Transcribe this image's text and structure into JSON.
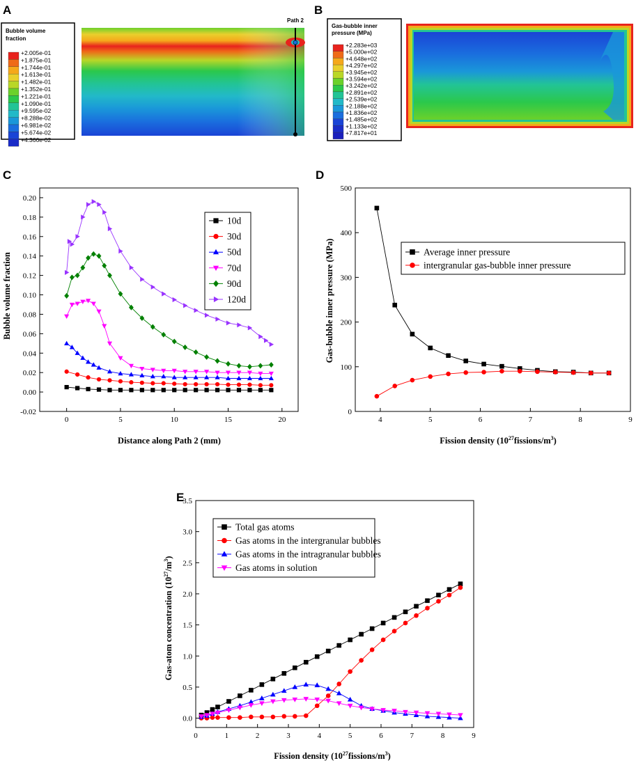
{
  "panels": {
    "A": {
      "letter": "A",
      "legend_title_line1": "Bubble volume",
      "legend_title_line2": "fraction",
      "legend_values": [
        "+2.005e-01",
        "+1.875e-01",
        "+1.744e-01",
        "+1.613e-01",
        "+1.482e-01",
        "+1.352e-01",
        "+1.221e-01",
        "+1.090e-01",
        "+9.595e-02",
        "+8.288e-02",
        "+6.981e-02",
        "+5.674e-02",
        "+4.366e-02"
      ],
      "path_label": "Path 2"
    },
    "B": {
      "letter": "B",
      "legend_title_line1": "Gas-bubble inner",
      "legend_title_line2": "pressure (MPa)",
      "legend_values": [
        "+2.283e+03",
        "+5.000e+02",
        "+4.648e+02",
        "+4.297e+02",
        "+3.945e+02",
        "+3.594e+02",
        "+3.242e+02",
        "+2.891e+02",
        "+2.539e+02",
        "+2.188e+02",
        "+1.836e+02",
        "+1.485e+02",
        "+1.133e+02",
        "+7.817e+01"
      ]
    },
    "C": {
      "letter": "C"
    },
    "D": {
      "letter": "D"
    },
    "E": {
      "letter": "E"
    }
  },
  "legend_colors": [
    "#e8231d",
    "#ef6a18",
    "#f5a81b",
    "#e9cf2c",
    "#b9d727",
    "#6bd12b",
    "#2bc84b",
    "#22c496",
    "#22b9c8",
    "#1a97d9",
    "#1a6ede",
    "#1a44d6",
    "#1a2cc8",
    "#1a1fbd"
  ],
  "chart_data": [
    {
      "id": "C",
      "type": "line",
      "xlabel": "Distance along Path 2 (mm)",
      "ylabel": "Bubble volume fraction",
      "xlim": [
        -2.5,
        21.5
      ],
      "ylim": [
        -0.02,
        0.21
      ],
      "xticks": [
        0,
        5,
        10,
        15,
        20
      ],
      "yticks": [
        -0.02,
        0.0,
        0.02,
        0.04,
        0.06,
        0.08,
        0.1,
        0.12,
        0.14,
        0.16,
        0.18,
        0.2
      ],
      "ytick_labels": [
        "-0.02",
        "0.00",
        "0.02",
        "0.04",
        "0.06",
        "0.08",
        "0.10",
        "0.12",
        "0.14",
        "0.16",
        "0.18",
        "0.20"
      ],
      "series": [
        {
          "name": "10d",
          "color": "#000000",
          "marker": "square",
          "x": [
            0,
            1,
            2,
            3,
            4,
            5,
            6,
            7,
            8,
            9,
            10,
            11,
            12,
            13,
            14,
            15,
            16,
            17,
            18,
            19
          ],
          "y": [
            0.005,
            0.004,
            0.003,
            0.0025,
            0.002,
            0.002,
            0.002,
            0.002,
            0.002,
            0.002,
            0.002,
            0.002,
            0.002,
            0.002,
            0.002,
            0.002,
            0.002,
            0.002,
            0.002,
            0.002
          ]
        },
        {
          "name": "30d",
          "color": "#ff0000",
          "marker": "circle",
          "x": [
            0,
            1,
            2,
            3,
            4,
            5,
            6,
            7,
            8,
            9,
            10,
            11,
            12,
            13,
            14,
            15,
            16,
            17,
            18,
            19
          ],
          "y": [
            0.021,
            0.018,
            0.015,
            0.013,
            0.012,
            0.011,
            0.01,
            0.0095,
            0.009,
            0.009,
            0.0085,
            0.008,
            0.008,
            0.008,
            0.008,
            0.0075,
            0.0075,
            0.0075,
            0.007,
            0.007
          ]
        },
        {
          "name": "50d",
          "color": "#0000ff",
          "marker": "triangle-up",
          "x": [
            0,
            0.5,
            1,
            1.5,
            2,
            2.5,
            3,
            4,
            5,
            6,
            7,
            8,
            9,
            10,
            11,
            12,
            13,
            14,
            15,
            16,
            17,
            18,
            19
          ],
          "y": [
            0.05,
            0.046,
            0.04,
            0.035,
            0.031,
            0.028,
            0.025,
            0.021,
            0.019,
            0.018,
            0.017,
            0.016,
            0.016,
            0.015,
            0.015,
            0.015,
            0.015,
            0.015,
            0.014,
            0.014,
            0.014,
            0.014,
            0.014
          ]
        },
        {
          "name": "70d",
          "color": "#ff00ff",
          "marker": "triangle-down",
          "x": [
            0,
            0.5,
            1,
            1.5,
            2,
            2.5,
            3,
            3.5,
            4,
            5,
            6,
            7,
            8,
            9,
            10,
            11,
            12,
            13,
            14,
            15,
            16,
            17,
            18,
            19
          ],
          "y": [
            0.078,
            0.09,
            0.091,
            0.093,
            0.094,
            0.091,
            0.083,
            0.068,
            0.05,
            0.035,
            0.027,
            0.024,
            0.023,
            0.022,
            0.022,
            0.021,
            0.021,
            0.021,
            0.02,
            0.02,
            0.02,
            0.02,
            0.019,
            0.019
          ]
        },
        {
          "name": "90d",
          "color": "#008000",
          "marker": "diamond",
          "x": [
            0,
            0.5,
            1,
            1.5,
            2,
            2.5,
            3,
            3.5,
            4,
            5,
            6,
            7,
            8,
            9,
            10,
            11,
            12,
            13,
            14,
            15,
            16,
            17,
            18,
            19
          ],
          "y": [
            0.099,
            0.118,
            0.12,
            0.128,
            0.138,
            0.142,
            0.14,
            0.13,
            0.12,
            0.101,
            0.087,
            0.076,
            0.067,
            0.059,
            0.052,
            0.046,
            0.041,
            0.036,
            0.032,
            0.029,
            0.027,
            0.026,
            0.027,
            0.028
          ]
        },
        {
          "name": "120d",
          "color": "#9933ff",
          "marker": "triangle-right",
          "x": [
            0,
            0.25,
            0.5,
            1,
            1.5,
            2,
            2.5,
            3,
            3.5,
            4,
            5,
            6,
            7,
            8,
            9,
            10,
            11,
            12,
            13,
            14,
            15,
            16,
            17,
            18,
            18.5,
            19
          ],
          "y": [
            0.123,
            0.155,
            0.152,
            0.16,
            0.18,
            0.193,
            0.196,
            0.193,
            0.185,
            0.168,
            0.145,
            0.128,
            0.116,
            0.108,
            0.101,
            0.095,
            0.089,
            0.084,
            0.079,
            0.075,
            0.071,
            0.069,
            0.066,
            0.057,
            0.053,
            0.049
          ]
        }
      ]
    },
    {
      "id": "D",
      "type": "line",
      "xlabel_pre": "Fission density (10",
      "xlabel_sup": "27",
      "xlabel_post": "fissions/m",
      "xlabel_sup2": "3",
      "xlabel_end": ")",
      "ylabel": "Gas-bubble inner pressure (MPa)",
      "xlim": [
        3.5,
        9
      ],
      "ylim": [
        0,
        500
      ],
      "xticks": [
        4,
        5,
        6,
        7,
        8,
        9
      ],
      "yticks": [
        0,
        100,
        200,
        300,
        400,
        500
      ],
      "series": [
        {
          "name": "Average inner pressure",
          "color": "#000000",
          "marker": "square",
          "x": [
            3.93,
            4.29,
            4.64,
            5.0,
            5.36,
            5.71,
            6.07,
            6.43,
            6.79,
            7.14,
            7.5,
            7.86,
            8.21,
            8.57
          ],
          "y": [
            455,
            238,
            173,
            142,
            125,
            113,
            106,
            101,
            96,
            92,
            89,
            88,
            86,
            86
          ]
        },
        {
          "name": "intergranular gas-bubble inner pressure",
          "color": "#ff0000",
          "marker": "circle",
          "x": [
            3.93,
            4.29,
            4.64,
            5.0,
            5.36,
            5.71,
            6.07,
            6.43,
            6.79,
            7.14,
            7.5,
            7.86,
            8.21,
            8.57
          ],
          "y": [
            34,
            57,
            70,
            78,
            84,
            87,
            88,
            90,
            90,
            89,
            88,
            87,
            86,
            86
          ]
        }
      ]
    },
    {
      "id": "E",
      "type": "line",
      "xlabel_pre": "Fission density (10",
      "xlabel_sup": "27",
      "xlabel_post": "fissions/m",
      "xlabel_sup2": "3",
      "xlabel_end": ")",
      "ylabel_pre": "Gas-atom concentration (10",
      "ylabel_sup": "27",
      "ylabel_post": "/m",
      "ylabel_sup2": "3",
      "ylabel_end": ")",
      "xlim": [
        0,
        9
      ],
      "ylim": [
        -0.15,
        3.5
      ],
      "xticks": [
        0,
        1,
        2,
        3,
        4,
        5,
        6,
        7,
        8,
        9
      ],
      "yticks": [
        0.0,
        0.5,
        1.0,
        1.5,
        2.0,
        2.5,
        3.0,
        3.5
      ],
      "ytick_labels": [
        "0.0",
        "0.5",
        "1.0",
        "1.5",
        "2.0",
        "2.5",
        "3.0",
        "3.5"
      ],
      "series": [
        {
          "name": "Total gas atoms",
          "color": "#000000",
          "marker": "square",
          "x": [
            0.18,
            0.36,
            0.54,
            0.71,
            1.07,
            1.43,
            1.79,
            2.14,
            2.5,
            2.86,
            3.21,
            3.57,
            3.93,
            4.29,
            4.64,
            5.0,
            5.36,
            5.71,
            6.07,
            6.43,
            6.79,
            7.14,
            7.5,
            7.86,
            8.21,
            8.57
          ],
          "y": [
            0.05,
            0.09,
            0.14,
            0.18,
            0.27,
            0.36,
            0.45,
            0.54,
            0.63,
            0.72,
            0.81,
            0.9,
            0.99,
            1.08,
            1.17,
            1.26,
            1.35,
            1.44,
            1.53,
            1.62,
            1.71,
            1.8,
            1.89,
            1.98,
            2.07,
            2.16
          ]
        },
        {
          "name": "Gas atoms in the intergranular bubbles",
          "color": "#ff0000",
          "marker": "circle",
          "x": [
            0.18,
            0.36,
            0.54,
            0.71,
            1.07,
            1.43,
            1.79,
            2.14,
            2.5,
            2.86,
            3.21,
            3.57,
            3.93,
            4.29,
            4.64,
            5.0,
            5.36,
            5.71,
            6.07,
            6.43,
            6.79,
            7.14,
            7.5,
            7.86,
            8.21,
            8.57
          ],
          "y": [
            0.0,
            0.0,
            0.01,
            0.01,
            0.01,
            0.01,
            0.02,
            0.02,
            0.02,
            0.03,
            0.03,
            0.04,
            0.2,
            0.36,
            0.55,
            0.75,
            0.93,
            1.1,
            1.26,
            1.4,
            1.53,
            1.65,
            1.77,
            1.88,
            1.98,
            2.1
          ]
        },
        {
          "name": "Gas atoms in the intragranular bubbles",
          "color": "#0000ff",
          "marker": "triangle-up",
          "x": [
            0.18,
            0.36,
            0.54,
            0.71,
            1.07,
            1.43,
            1.79,
            2.14,
            2.5,
            2.86,
            3.21,
            3.57,
            3.93,
            4.29,
            4.64,
            5.0,
            5.36,
            5.71,
            6.07,
            6.43,
            6.79,
            7.14,
            7.5,
            7.86,
            8.21,
            8.57
          ],
          "y": [
            0.02,
            0.04,
            0.07,
            0.1,
            0.15,
            0.2,
            0.26,
            0.32,
            0.38,
            0.44,
            0.5,
            0.54,
            0.53,
            0.47,
            0.4,
            0.3,
            0.2,
            0.15,
            0.12,
            0.09,
            0.07,
            0.05,
            0.03,
            0.02,
            0.01,
            0.0
          ]
        },
        {
          "name": "Gas atoms in solution",
          "color": "#ff00ff",
          "marker": "triangle-down",
          "x": [
            0.18,
            0.36,
            0.54,
            0.71,
            1.07,
            1.43,
            1.79,
            2.14,
            2.5,
            2.86,
            3.21,
            3.57,
            3.93,
            4.29,
            4.64,
            5.0,
            5.36,
            5.71,
            6.07,
            6.43,
            6.79,
            7.14,
            7.5,
            7.86,
            8.21,
            8.57
          ],
          "y": [
            0.03,
            0.05,
            0.07,
            0.09,
            0.13,
            0.17,
            0.21,
            0.24,
            0.27,
            0.29,
            0.3,
            0.31,
            0.3,
            0.28,
            0.24,
            0.2,
            0.17,
            0.15,
            0.13,
            0.12,
            0.1,
            0.09,
            0.08,
            0.07,
            0.06,
            0.05
          ]
        }
      ]
    }
  ]
}
